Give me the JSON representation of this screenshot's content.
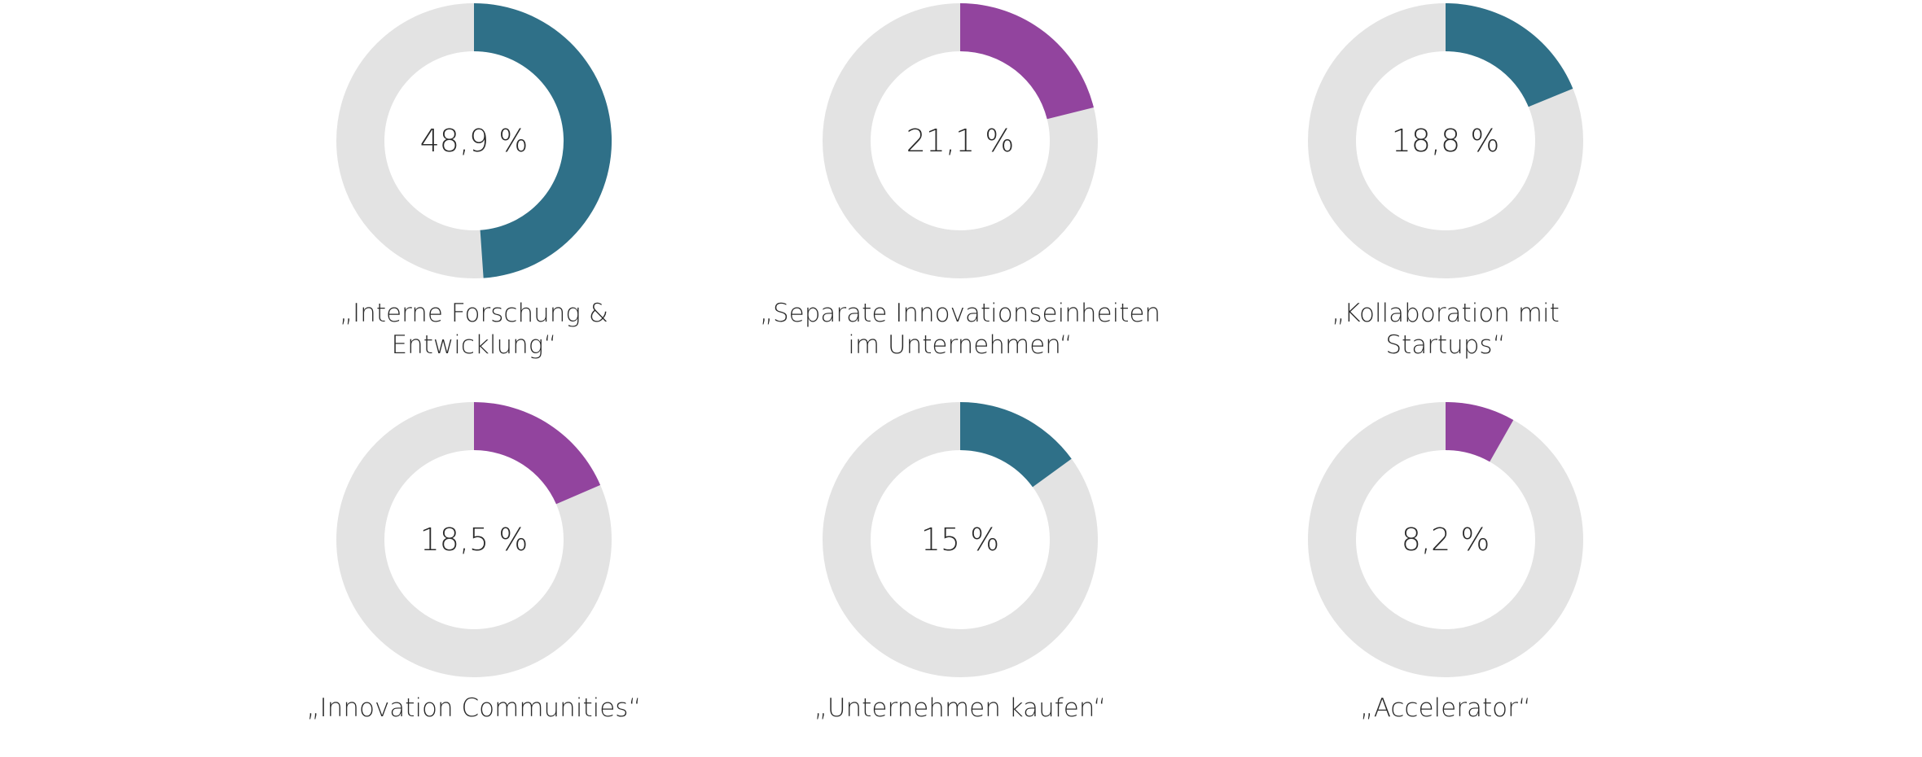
{
  "colors": {
    "track": "#e3e3e3",
    "teal": "#2f7088",
    "purple": "#92449e"
  },
  "chart_data": [
    {
      "type": "pie",
      "variant": "donut",
      "value": 48.9,
      "value_label": "48,9 %",
      "label_lines": [
        "„Interne Forschung &",
        "Entwicklung“"
      ],
      "color": "teal"
    },
    {
      "type": "pie",
      "variant": "donut",
      "value": 21.1,
      "value_label": "21,1 %",
      "label_lines": [
        "„Separate Innovationseinheiten",
        "im Unternehmen“"
      ],
      "color": "purple"
    },
    {
      "type": "pie",
      "variant": "donut",
      "value": 18.8,
      "value_label": "18,8 %",
      "label_lines": [
        "„Kollaboration mit",
        "Startups“"
      ],
      "color": "teal"
    },
    {
      "type": "pie",
      "variant": "donut",
      "value": 18.5,
      "value_label": "18,5 %",
      "label_lines": [
        "„Innovation Communities“"
      ],
      "color": "purple"
    },
    {
      "type": "pie",
      "variant": "donut",
      "value": 15,
      "value_label": "15 %",
      "label_lines": [
        "„Unternehmen kaufen“"
      ],
      "color": "teal"
    },
    {
      "type": "pie",
      "variant": "donut",
      "value": 8.2,
      "value_label": "8,2 %",
      "label_lines": [
        "„Accelerator“"
      ],
      "color": "purple"
    }
  ]
}
